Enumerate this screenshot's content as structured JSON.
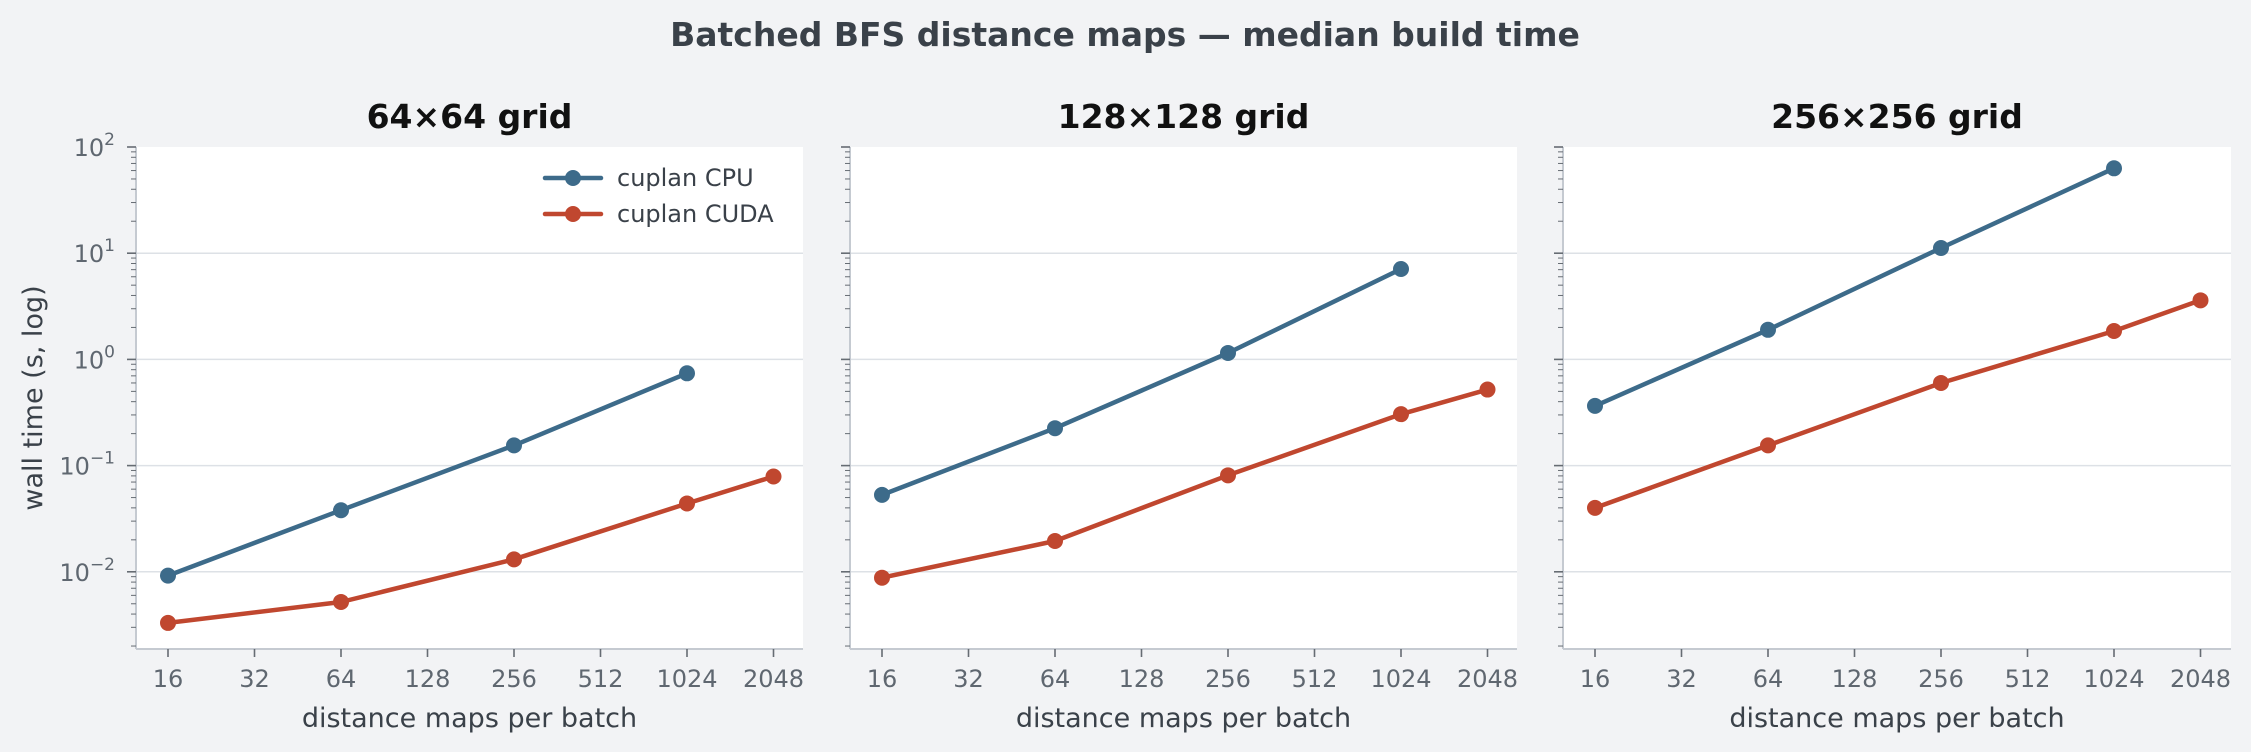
{
  "figure": {
    "title": "Batched BFS distance maps — median build time"
  },
  "colors": {
    "cpu": "#3d6b8a",
    "cuda": "#c0472f",
    "grid": "#dde1e6",
    "spine": "#c5cad1",
    "background": "#f2f3f5",
    "panel": "#ffffff"
  },
  "chart_data": [
    {
      "type": "line",
      "title": "64×64 grid",
      "xlabel": "distance maps per batch",
      "ylabel": "wall time (s, log)",
      "xscale": "log2",
      "yscale": "log10",
      "x_ticks": [
        "16",
        "32",
        "64",
        "128",
        "256",
        "512",
        "1024",
        "2048"
      ],
      "y_ticks": [
        "10^-2",
        "10^-1",
        "10^0",
        "10^1",
        "10^2"
      ],
      "ylim": [
        0.0018,
        100
      ],
      "grid": "horizontal",
      "legend": "top-right",
      "series": [
        {
          "name": "cuplan CPU",
          "color": "#3d6b8a",
          "x": [
            16,
            64,
            256,
            1024
          ],
          "y": [
            0.0092,
            0.038,
            0.155,
            0.74
          ]
        },
        {
          "name": "cuplan CUDA",
          "color": "#c0472f",
          "x": [
            16,
            64,
            256,
            1024,
            2048
          ],
          "y": [
            0.0033,
            0.0052,
            0.0131,
            0.044,
            0.079
          ]
        }
      ]
    },
    {
      "type": "line",
      "title": "128×128 grid",
      "xlabel": "distance maps per batch",
      "xscale": "log2",
      "yscale": "log10",
      "x_ticks": [
        "16",
        "32",
        "64",
        "128",
        "256",
        "512",
        "1024",
        "2048"
      ],
      "ylim": [
        0.0018,
        100
      ],
      "grid": "horizontal",
      "series": [
        {
          "name": "cuplan CPU",
          "color": "#3d6b8a",
          "x": [
            16,
            64,
            256,
            1024
          ],
          "y": [
            0.053,
            0.225,
            1.15,
            7.1
          ]
        },
        {
          "name": "cuplan CUDA",
          "color": "#c0472f",
          "x": [
            16,
            64,
            256,
            1024,
            2048
          ],
          "y": [
            0.0088,
            0.0195,
            0.081,
            0.305,
            0.52
          ]
        }
      ]
    },
    {
      "type": "line",
      "title": "256×256 grid",
      "xlabel": "distance maps per batch",
      "xscale": "log2",
      "yscale": "log10",
      "x_ticks": [
        "16",
        "32",
        "64",
        "128",
        "256",
        "512",
        "1024",
        "2048"
      ],
      "ylim": [
        0.0018,
        100
      ],
      "grid": "horizontal",
      "series": [
        {
          "name": "cuplan CPU",
          "color": "#3d6b8a",
          "x": [
            16,
            64,
            256,
            1024
          ],
          "y": [
            0.365,
            1.9,
            11.2,
            63
          ]
        },
        {
          "name": "cuplan CUDA",
          "color": "#c0472f",
          "x": [
            16,
            64,
            256,
            1024,
            2048
          ],
          "y": [
            0.04,
            0.155,
            0.6,
            1.85,
            3.6
          ]
        }
      ]
    }
  ]
}
